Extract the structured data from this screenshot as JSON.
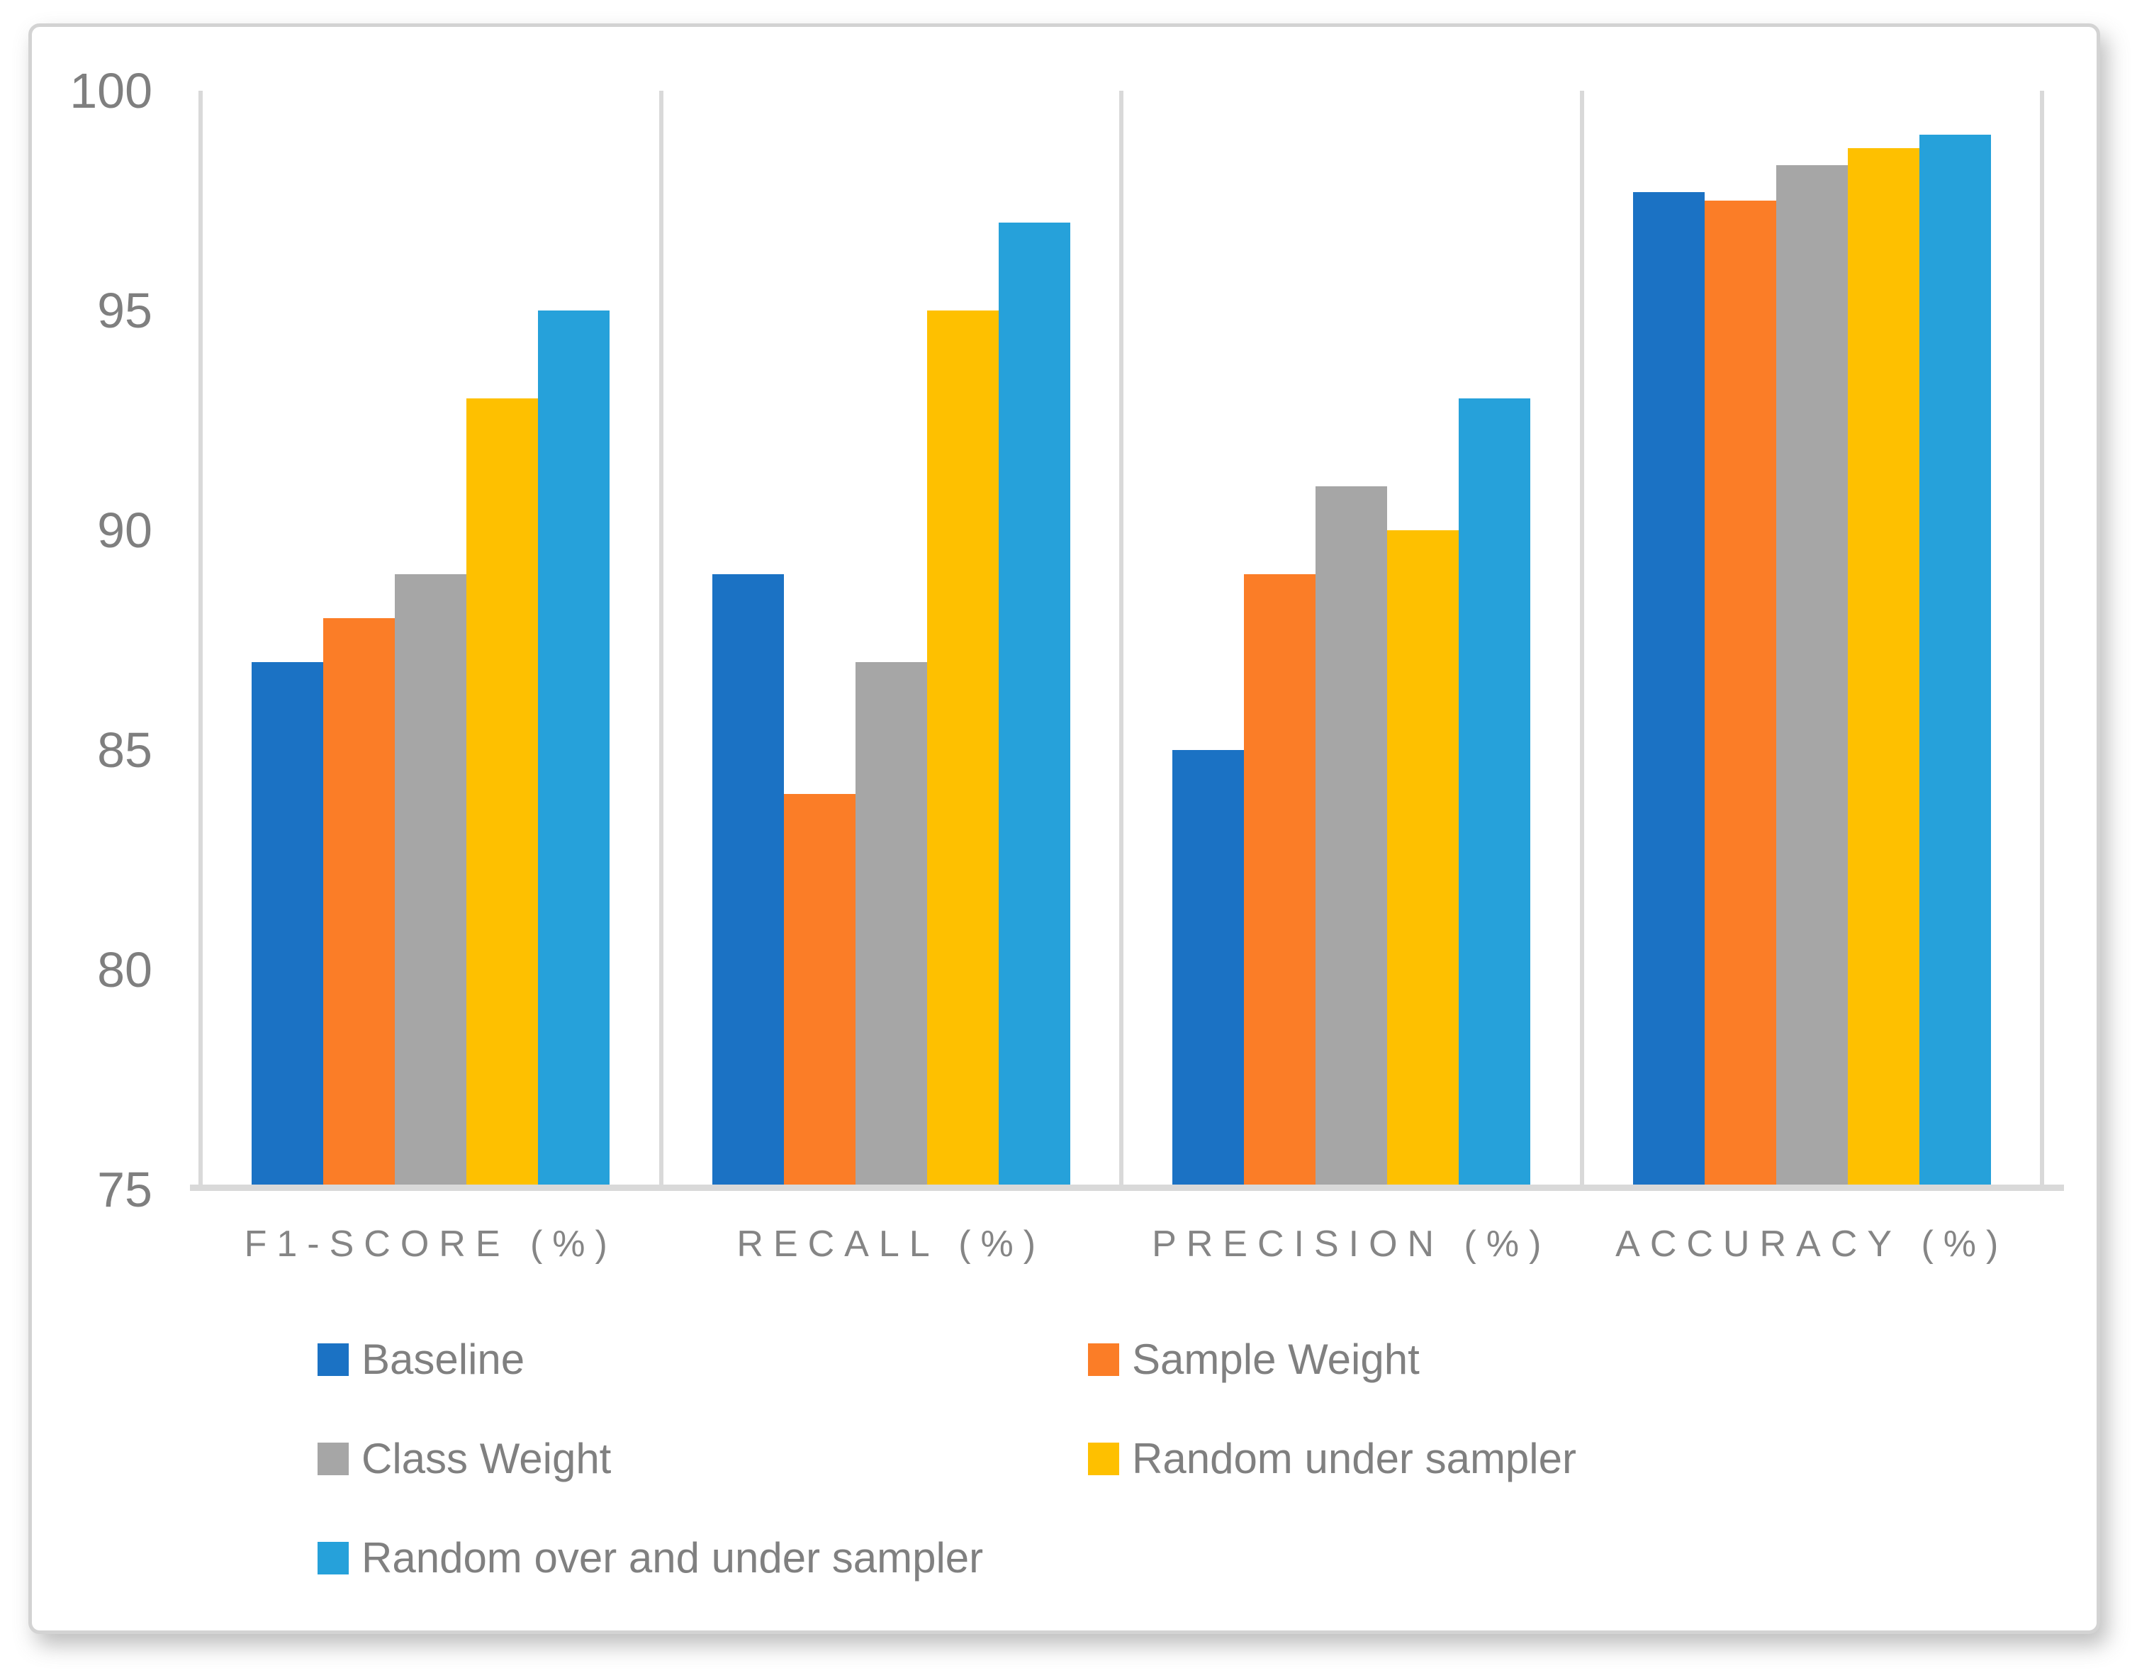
{
  "chart_data": {
    "type": "bar",
    "title": "",
    "xlabel": "",
    "ylabel": "",
    "categories": [
      "F1-SCORE (%)",
      "RECALL (%)",
      "PRECISION (%)",
      "ACCURACY (%)"
    ],
    "series": [
      {
        "name": "Baseline",
        "color": "#1B72C4",
        "values": [
          87,
          89,
          85,
          97.7
        ]
      },
      {
        "name": "Sample Weight",
        "color": "#FB7D27",
        "values": [
          88,
          84,
          89,
          97.5
        ]
      },
      {
        "name": "Class Weight",
        "color": "#A6A6A6",
        "values": [
          89,
          87,
          91,
          98.3
        ]
      },
      {
        "name": "Random under sampler",
        "color": "#FEC000",
        "values": [
          93,
          95,
          90,
          98.7
        ]
      },
      {
        "name": "Random over and under sampler",
        "color": "#26A1DA",
        "values": [
          95,
          97,
          93,
          99
        ]
      }
    ],
    "ylim": [
      75,
      100
    ],
    "yticks": [
      100,
      95,
      90,
      85,
      80,
      75
    ],
    "grid": "vertical category separators only, no horizontal gridlines",
    "legend_position": "bottom-left, two columns, three rows"
  },
  "colors": {
    "axis_line": "#D9D9D9",
    "tick_text": "#7F7F7F",
    "category_text": "#858585",
    "legend_text": "#808080",
    "card_border": "#D3D3D3",
    "background": "#FFFFFF"
  }
}
